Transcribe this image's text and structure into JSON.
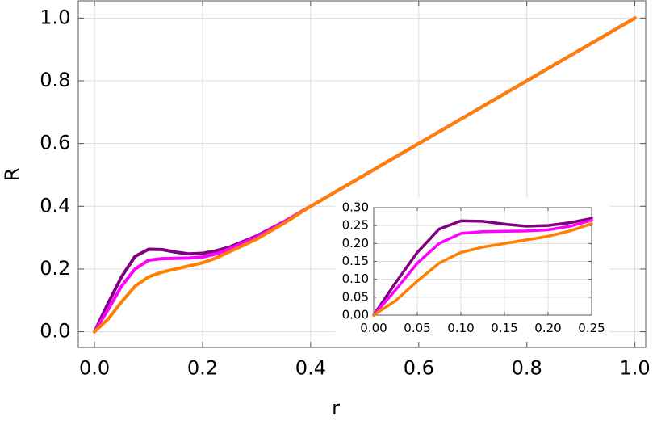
{
  "chart_data": [
    {
      "type": "line",
      "x_label": "r",
      "y_label": "R",
      "x": [
        0,
        0.025,
        0.05,
        0.075,
        0.1,
        0.125,
        0.15,
        0.175,
        0.2,
        0.225,
        0.25,
        0.3,
        0.35,
        0.4,
        0.5,
        0.6,
        0.7,
        0.8,
        0.9,
        1.0
      ],
      "series": [
        {
          "color": "#800080",
          "values": [
            0,
            0.09,
            0.175,
            0.24,
            0.263,
            0.262,
            0.254,
            0.248,
            0.25,
            0.258,
            0.27,
            0.305,
            0.35,
            0.4,
            0.5,
            0.6,
            0.7,
            0.8,
            0.9,
            1.0
          ]
        },
        {
          "color": "#ff00ff",
          "values": [
            0,
            0.07,
            0.145,
            0.2,
            0.228,
            0.233,
            0.234,
            0.235,
            0.238,
            0.248,
            0.265,
            0.302,
            0.349,
            0.4,
            0.5,
            0.6,
            0.7,
            0.8,
            0.9,
            1.0
          ]
        },
        {
          "color": "#ff8000",
          "values": [
            0,
            0.04,
            0.095,
            0.145,
            0.175,
            0.19,
            0.2,
            0.21,
            0.22,
            0.235,
            0.255,
            0.295,
            0.345,
            0.4,
            0.5,
            0.6,
            0.7,
            0.8,
            0.9,
            1.0
          ]
        }
      ],
      "xlim": [
        -0.03,
        1.02
      ],
      "ylim": [
        -0.05,
        1.055
      ],
      "xticks": [
        {
          "value": 0,
          "label": "0.0"
        },
        {
          "value": 0.2,
          "label": "0.2"
        },
        {
          "value": 0.4,
          "label": "0.4"
        },
        {
          "value": 0.6,
          "label": "0.6"
        },
        {
          "value": 0.8,
          "label": "0.8"
        },
        {
          "value": 1.0,
          "label": "1.0"
        }
      ],
      "yticks": [
        {
          "value": 0,
          "label": "0.0"
        },
        {
          "value": 0.2,
          "label": "0.2"
        },
        {
          "value": 0.4,
          "label": "0.4"
        },
        {
          "value": 0.6,
          "label": "0.6"
        },
        {
          "value": 0.8,
          "label": "0.8"
        },
        {
          "value": 1.0,
          "label": "1.0"
        }
      ],
      "grid": true
    },
    {
      "type": "line",
      "x": [
        0,
        0.025,
        0.05,
        0.075,
        0.1,
        0.125,
        0.15,
        0.175,
        0.2,
        0.225,
        0.25
      ],
      "series": [
        {
          "color": "#800080",
          "values": [
            0,
            0.09,
            0.175,
            0.24,
            0.263,
            0.262,
            0.254,
            0.248,
            0.25,
            0.258,
            0.27
          ]
        },
        {
          "color": "#ff00ff",
          "values": [
            0,
            0.07,
            0.145,
            0.2,
            0.228,
            0.233,
            0.234,
            0.235,
            0.238,
            0.248,
            0.265
          ]
        },
        {
          "color": "#ff8000",
          "values": [
            0,
            0.04,
            0.095,
            0.145,
            0.175,
            0.19,
            0.2,
            0.21,
            0.22,
            0.235,
            0.255
          ]
        }
      ],
      "xlim": [
        0,
        0.25
      ],
      "ylim": [
        0,
        0.3
      ],
      "xticks": [
        {
          "value": 0,
          "label": "0.00"
        },
        {
          "value": 0.05,
          "label": "0.05"
        },
        {
          "value": 0.1,
          "label": "0.10"
        },
        {
          "value": 0.15,
          "label": "0.15"
        },
        {
          "value": 0.2,
          "label": "0.20"
        },
        {
          "value": 0.25,
          "label": "0.25"
        }
      ],
      "yticks": [
        {
          "value": 0,
          "label": "0.00"
        },
        {
          "value": 0.05,
          "label": "0.05"
        },
        {
          "value": 0.1,
          "label": "0.10"
        },
        {
          "value": 0.15,
          "label": "0.15"
        },
        {
          "value": 0.2,
          "label": "0.20"
        },
        {
          "value": 0.25,
          "label": "0.25"
        },
        {
          "value": 0.3,
          "label": "0.30"
        }
      ],
      "grid": true
    }
  ]
}
